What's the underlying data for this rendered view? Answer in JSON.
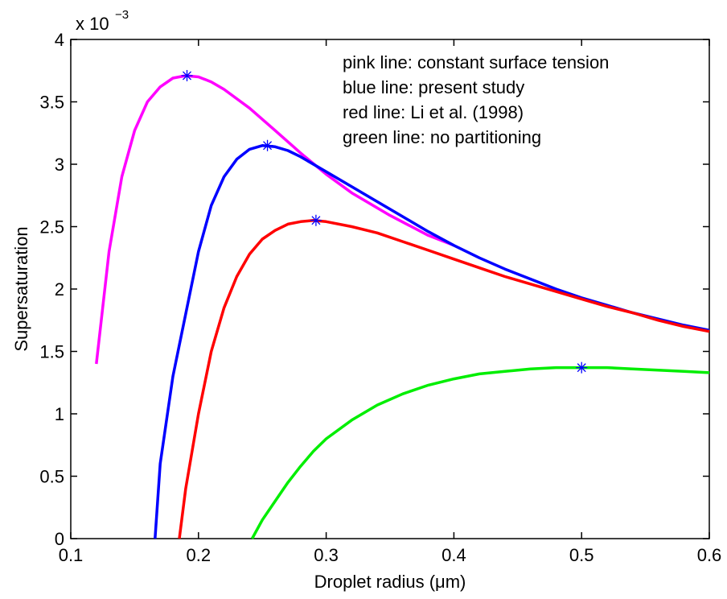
{
  "chart_data": {
    "type": "line",
    "title": "",
    "xlabel": "Droplet radius (μm)",
    "ylabel": "Supersaturation",
    "xlim": [
      0.1,
      0.6
    ],
    "ylim": [
      0,
      0.004
    ],
    "y_multiplier": "x 10",
    "y_exponent": "−3",
    "xticks": [
      0.1,
      0.2,
      0.3,
      0.4,
      0.5,
      0.6
    ],
    "xtick_labels": [
      "0.1",
      "0.2",
      "0.3",
      "0.4",
      "0.5",
      "0.6"
    ],
    "yticks": [
      0,
      0.0005,
      0.001,
      0.0015,
      0.002,
      0.0025,
      0.003,
      0.0035,
      0.004
    ],
    "ytick_labels": [
      "0",
      "0.5",
      "1",
      "1.5",
      "2",
      "2.5",
      "3",
      "3.5",
      "4"
    ],
    "grid": false,
    "legend_position": "top-right",
    "annotations": [
      {
        "text": "pink line: constant surface tension"
      },
      {
        "text": "blue line: present study"
      },
      {
        "text": "red line: Li et al. (1998)"
      },
      {
        "text": "green line: no partitioning"
      }
    ],
    "series": [
      {
        "color": "#ff00ff",
        "x": [
          0.12,
          0.13,
          0.14,
          0.15,
          0.16,
          0.17,
          0.18,
          0.19,
          0.2,
          0.21,
          0.22,
          0.24,
          0.26,
          0.28,
          0.3,
          0.32,
          0.35,
          0.38,
          0.4
        ],
        "y": [
          0.0014,
          0.0023,
          0.0029,
          0.00327,
          0.0035,
          0.00362,
          0.00369,
          0.00371,
          0.0037,
          0.00366,
          0.0036,
          0.00345,
          0.00327,
          0.00309,
          0.00292,
          0.00277,
          0.00259,
          0.00243,
          0.00235
        ],
        "peak": {
          "x": 0.191,
          "y": 0.00371
        }
      },
      {
        "color": "#0000ff",
        "x": [
          0.166,
          0.17,
          0.18,
          0.19,
          0.2,
          0.21,
          0.22,
          0.23,
          0.24,
          0.25,
          0.26,
          0.27,
          0.28,
          0.3,
          0.32,
          0.34,
          0.36,
          0.38,
          0.4,
          0.42,
          0.44,
          0.46,
          0.48,
          0.5,
          0.52,
          0.54,
          0.56,
          0.58,
          0.6
        ],
        "y": [
          0,
          0.0006,
          0.0013,
          0.0018,
          0.0023,
          0.00267,
          0.0029,
          0.00304,
          0.00312,
          0.00315,
          0.00314,
          0.00311,
          0.00306,
          0.00294,
          0.00282,
          0.0027,
          0.00258,
          0.00246,
          0.00235,
          0.00225,
          0.00216,
          0.00208,
          0.002,
          0.00193,
          0.00187,
          0.00181,
          0.00176,
          0.00171,
          0.00167
        ]
      },
      {
        "color": "#ff0000",
        "x": [
          0.185,
          0.19,
          0.2,
          0.21,
          0.22,
          0.23,
          0.24,
          0.25,
          0.26,
          0.27,
          0.28,
          0.29,
          0.3,
          0.32,
          0.34,
          0.36,
          0.38,
          0.4,
          0.42,
          0.44,
          0.46,
          0.48,
          0.5,
          0.52,
          0.54,
          0.56,
          0.58,
          0.6
        ],
        "y": [
          0,
          0.0004,
          0.001,
          0.0015,
          0.00185,
          0.0021,
          0.00228,
          0.0024,
          0.00247,
          0.00252,
          0.00254,
          0.00255,
          0.00254,
          0.0025,
          0.00245,
          0.00238,
          0.00231,
          0.00224,
          0.00217,
          0.0021,
          0.00204,
          0.00198,
          0.00192,
          0.00186,
          0.00181,
          0.00175,
          0.0017,
          0.00166
        ],
        "peak": {
          "x": 0.292,
          "y": 0.00255
        }
      },
      {
        "color": "#00ee00",
        "x": [
          0.242,
          0.25,
          0.26,
          0.27,
          0.28,
          0.29,
          0.3,
          0.32,
          0.34,
          0.36,
          0.38,
          0.4,
          0.42,
          0.44,
          0.46,
          0.48,
          0.5,
          0.52,
          0.54,
          0.56,
          0.58,
          0.6
        ],
        "y": [
          0,
          0.00015,
          0.0003,
          0.00045,
          0.00058,
          0.0007,
          0.0008,
          0.00095,
          0.00107,
          0.00116,
          0.00123,
          0.00128,
          0.00132,
          0.00134,
          0.00136,
          0.00137,
          0.00137,
          0.00137,
          0.00136,
          0.00135,
          0.00134,
          0.00133
        ],
        "peak": {
          "x": 0.5,
          "y": 0.00137
        }
      }
    ],
    "extra_markers": [
      {
        "x": 0.254,
        "y": 0.00315
      }
    ]
  }
}
